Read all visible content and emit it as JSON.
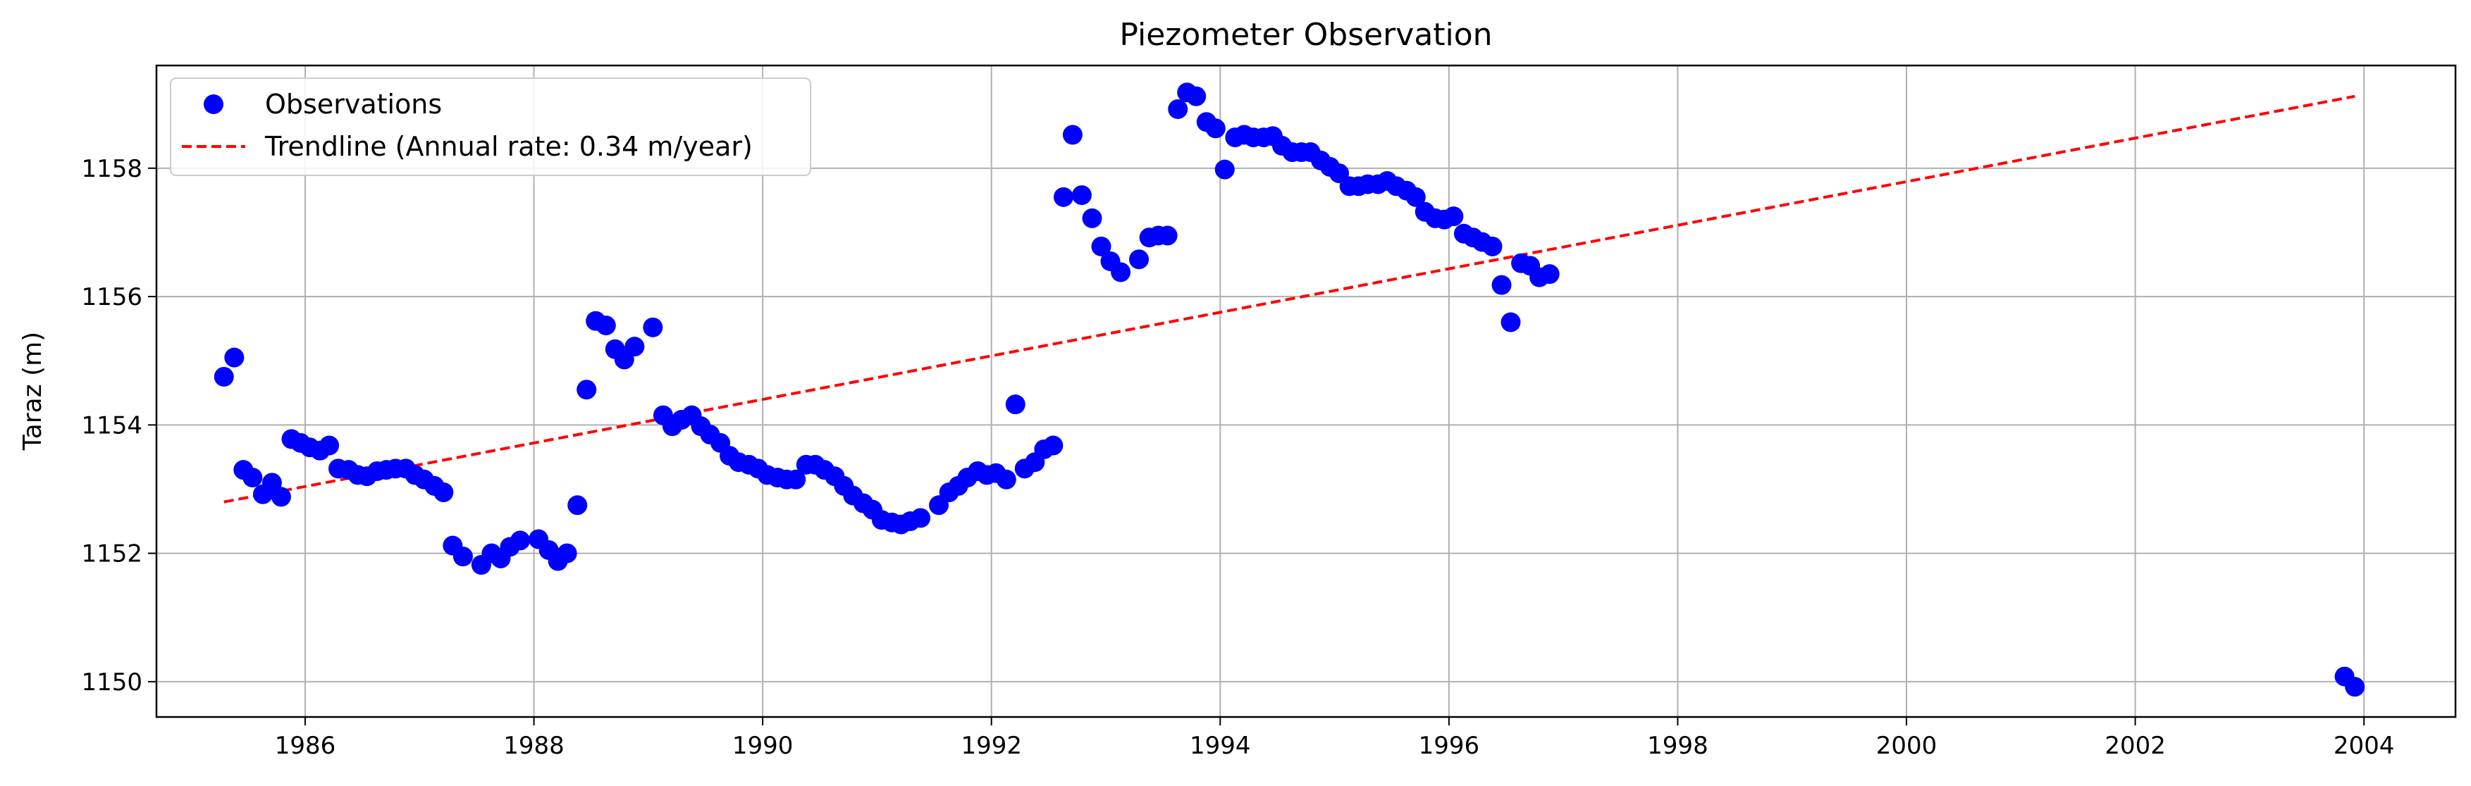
{
  "chart_data": {
    "type": "scatter",
    "title": "Piezometer Observation",
    "xlabel": "",
    "ylabel": "Taraz (m)",
    "x_unit": "year",
    "xlim": [
      1984.7,
      2004.8
    ],
    "ylim": [
      1149.45,
      1159.6
    ],
    "x_ticks": [
      1986,
      1988,
      1990,
      1992,
      1994,
      1996,
      1998,
      2000,
      2002,
      2004
    ],
    "y_ticks": [
      1150,
      1152,
      1154,
      1156,
      1158
    ],
    "grid": true,
    "legend_position": "top-left",
    "series": [
      {
        "name": "Observations",
        "kind": "scatter",
        "color": "#0000ff",
        "points": [
          [
            1985.29,
            1154.75
          ],
          [
            1985.38,
            1155.05
          ],
          [
            1985.46,
            1153.3
          ],
          [
            1985.54,
            1153.18
          ],
          [
            1985.63,
            1152.92
          ],
          [
            1985.71,
            1153.1
          ],
          [
            1985.79,
            1152.88
          ],
          [
            1985.88,
            1153.78
          ],
          [
            1985.96,
            1153.72
          ],
          [
            1986.04,
            1153.65
          ],
          [
            1986.13,
            1153.6
          ],
          [
            1986.21,
            1153.68
          ],
          [
            1986.29,
            1153.32
          ],
          [
            1986.38,
            1153.3
          ],
          [
            1986.46,
            1153.22
          ],
          [
            1986.54,
            1153.2
          ],
          [
            1986.63,
            1153.28
          ],
          [
            1986.71,
            1153.3
          ],
          [
            1986.79,
            1153.32
          ],
          [
            1986.88,
            1153.32
          ],
          [
            1986.96,
            1153.22
          ],
          [
            1987.04,
            1153.15
          ],
          [
            1987.13,
            1153.05
          ],
          [
            1987.21,
            1152.95
          ],
          [
            1987.29,
            1152.12
          ],
          [
            1987.38,
            1151.95
          ],
          [
            1987.54,
            1151.82
          ],
          [
            1987.63,
            1152.0
          ],
          [
            1987.71,
            1151.92
          ],
          [
            1987.79,
            1152.1
          ],
          [
            1987.88,
            1152.2
          ],
          [
            1988.04,
            1152.22
          ],
          [
            1988.13,
            1152.05
          ],
          [
            1988.21,
            1151.88
          ],
          [
            1988.29,
            1152.0
          ],
          [
            1988.38,
            1152.75
          ],
          [
            1988.46,
            1154.55
          ],
          [
            1988.54,
            1155.62
          ],
          [
            1988.63,
            1155.55
          ],
          [
            1988.71,
            1155.18
          ],
          [
            1988.79,
            1155.02
          ],
          [
            1988.88,
            1155.22
          ],
          [
            1989.04,
            1155.52
          ],
          [
            1989.13,
            1154.15
          ],
          [
            1989.21,
            1153.98
          ],
          [
            1989.29,
            1154.08
          ],
          [
            1989.38,
            1154.15
          ],
          [
            1989.46,
            1153.98
          ],
          [
            1989.54,
            1153.85
          ],
          [
            1989.63,
            1153.72
          ],
          [
            1989.71,
            1153.52
          ],
          [
            1989.79,
            1153.42
          ],
          [
            1989.88,
            1153.38
          ],
          [
            1989.96,
            1153.32
          ],
          [
            1990.04,
            1153.22
          ],
          [
            1990.13,
            1153.18
          ],
          [
            1990.21,
            1153.15
          ],
          [
            1990.29,
            1153.15
          ],
          [
            1990.38,
            1153.38
          ],
          [
            1990.46,
            1153.38
          ],
          [
            1990.54,
            1153.3
          ],
          [
            1990.63,
            1153.2
          ],
          [
            1990.71,
            1153.05
          ],
          [
            1990.79,
            1152.9
          ],
          [
            1990.88,
            1152.78
          ],
          [
            1990.96,
            1152.68
          ],
          [
            1991.04,
            1152.52
          ],
          [
            1991.13,
            1152.48
          ],
          [
            1991.21,
            1152.45
          ],
          [
            1991.29,
            1152.5
          ],
          [
            1991.38,
            1152.55
          ],
          [
            1991.54,
            1152.75
          ],
          [
            1991.63,
            1152.95
          ],
          [
            1991.71,
            1153.05
          ],
          [
            1991.79,
            1153.18
          ],
          [
            1991.88,
            1153.28
          ],
          [
            1991.96,
            1153.22
          ],
          [
            1992.04,
            1153.25
          ],
          [
            1992.13,
            1153.15
          ],
          [
            1992.21,
            1154.32
          ],
          [
            1992.29,
            1153.32
          ],
          [
            1992.38,
            1153.42
          ],
          [
            1992.46,
            1153.62
          ],
          [
            1992.54,
            1153.68
          ],
          [
            1992.63,
            1157.55
          ],
          [
            1992.71,
            1158.52
          ],
          [
            1992.79,
            1157.58
          ],
          [
            1992.88,
            1157.22
          ],
          [
            1992.96,
            1156.78
          ],
          [
            1993.04,
            1156.55
          ],
          [
            1993.13,
            1156.38
          ],
          [
            1993.29,
            1156.58
          ],
          [
            1993.38,
            1156.92
          ],
          [
            1993.46,
            1156.95
          ],
          [
            1993.54,
            1156.95
          ],
          [
            1993.63,
            1158.92
          ],
          [
            1993.71,
            1159.18
          ],
          [
            1993.79,
            1159.12
          ],
          [
            1993.88,
            1158.72
          ],
          [
            1993.96,
            1158.62
          ],
          [
            1994.04,
            1157.98
          ],
          [
            1994.13,
            1158.48
          ],
          [
            1994.21,
            1158.52
          ],
          [
            1994.29,
            1158.48
          ],
          [
            1994.38,
            1158.48
          ],
          [
            1994.46,
            1158.5
          ],
          [
            1994.54,
            1158.35
          ],
          [
            1994.63,
            1158.25
          ],
          [
            1994.71,
            1158.25
          ],
          [
            1994.79,
            1158.25
          ],
          [
            1994.88,
            1158.12
          ],
          [
            1994.96,
            1158.02
          ],
          [
            1995.04,
            1157.92
          ],
          [
            1995.13,
            1157.72
          ],
          [
            1995.21,
            1157.72
          ],
          [
            1995.29,
            1157.75
          ],
          [
            1995.38,
            1157.75
          ],
          [
            1995.46,
            1157.8
          ],
          [
            1995.54,
            1157.72
          ],
          [
            1995.63,
            1157.65
          ],
          [
            1995.71,
            1157.55
          ],
          [
            1995.79,
            1157.32
          ],
          [
            1995.88,
            1157.22
          ],
          [
            1995.96,
            1157.2
          ],
          [
            1996.04,
            1157.25
          ],
          [
            1996.13,
            1156.98
          ],
          [
            1996.21,
            1156.92
          ],
          [
            1996.29,
            1156.85
          ],
          [
            1996.38,
            1156.78
          ],
          [
            1996.46,
            1156.18
          ],
          [
            1996.54,
            1155.6
          ],
          [
            1996.63,
            1156.52
          ],
          [
            1996.71,
            1156.48
          ],
          [
            1996.79,
            1156.3
          ],
          [
            1996.88,
            1156.35
          ],
          [
            2003.83,
            1150.08
          ],
          [
            2003.92,
            1149.92
          ]
        ]
      },
      {
        "name": "Trendline (Annual rate: 0.34 m/year)",
        "kind": "line",
        "style": "dashed",
        "color": "#ff0000",
        "points": [
          [
            1985.29,
            1152.8
          ],
          [
            2003.92,
            1159.12
          ]
        ]
      }
    ]
  }
}
